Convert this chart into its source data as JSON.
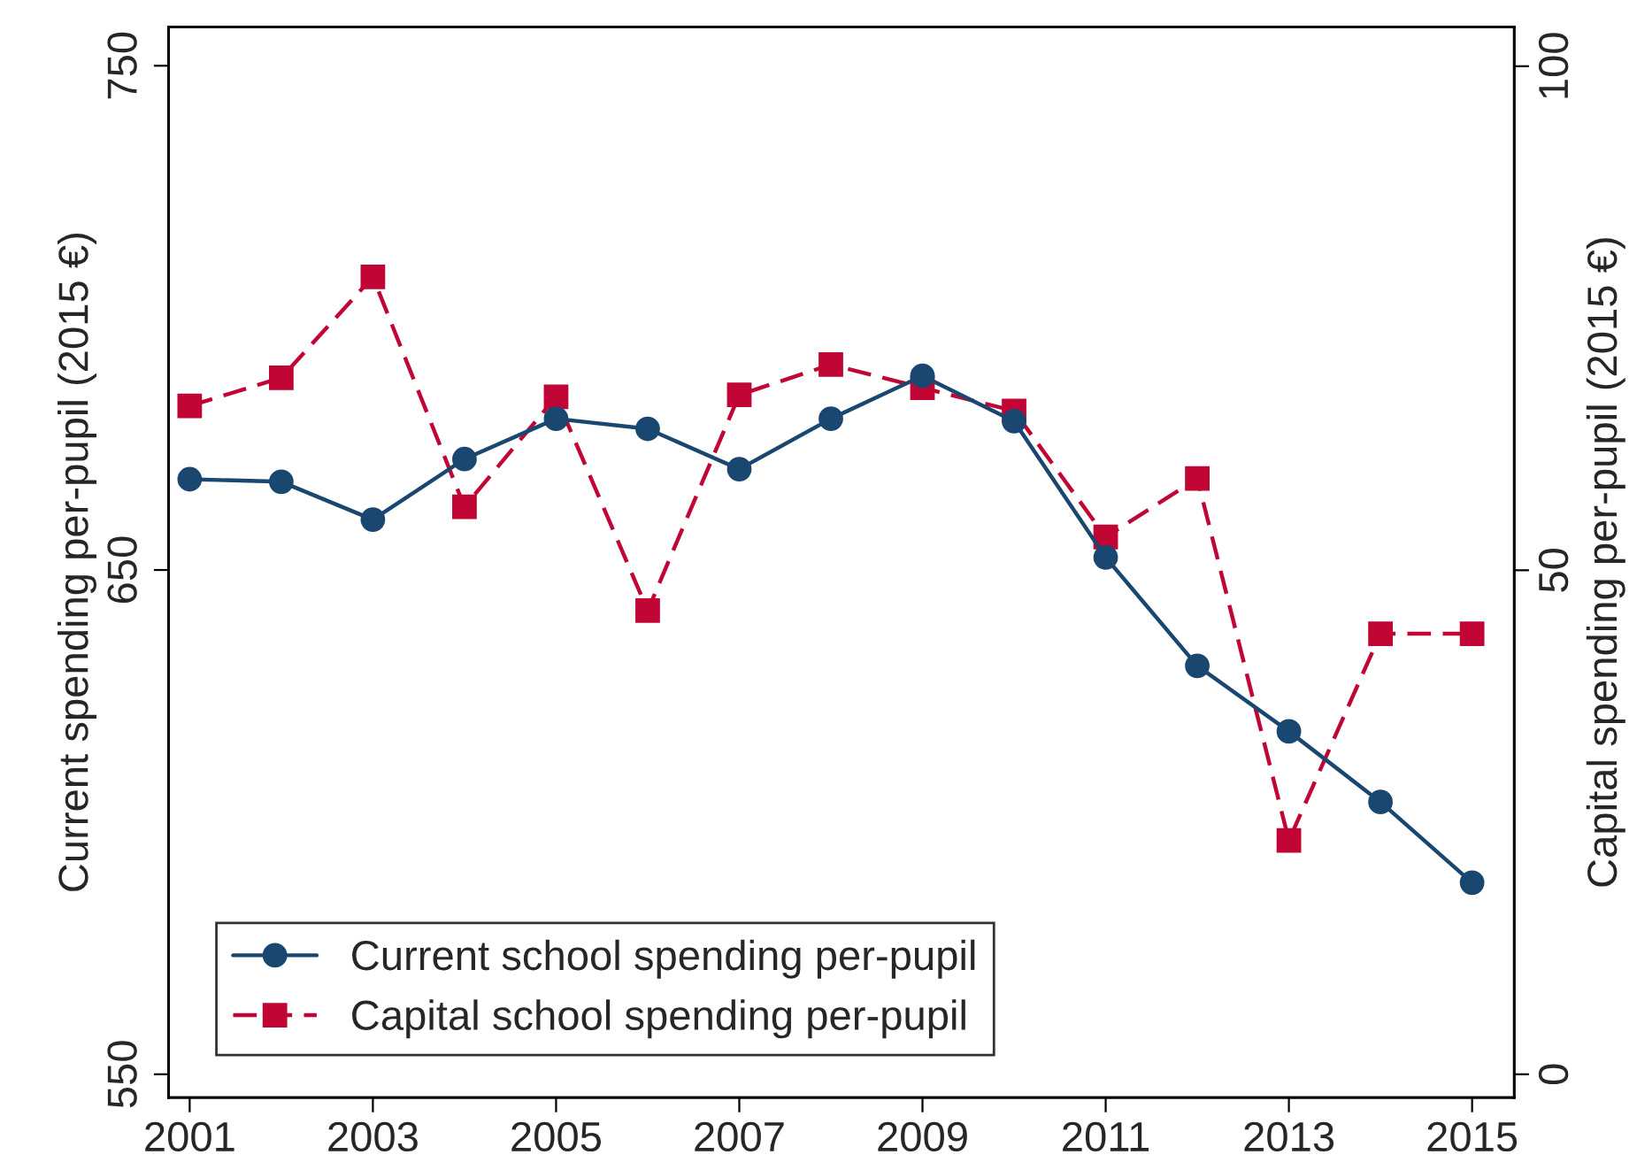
{
  "chart_data": {
    "type": "line",
    "xlabel": null,
    "ylabel": "Current spending per-pupil (2015 €)",
    "y2label": "Capital spending per-pupil (2015 €)",
    "x": [
      2001,
      2002,
      2003,
      2004,
      2005,
      2006,
      2007,
      2008,
      2009,
      2010,
      2011,
      2012,
      2013,
      2014,
      2015
    ],
    "series": [
      {
        "name": "Current school spending per-pupil",
        "color": "#1a476f",
        "marker": "circle",
        "line_style": "solid",
        "values": [
          668,
          667.5,
          660,
          672,
          680,
          678,
          670,
          680,
          688.5,
          679.5,
          652.5,
          631,
          618,
          604,
          588
        ]
      },
      {
        "name": "Capital school spending per-pupil",
        "color": "#c10534",
        "marker": "square",
        "line_style": "dashed",
        "axis": "y2",
        "values": [
          66.3,
          69.1,
          79.1,
          56.3,
          67.2,
          46,
          67.4,
          70.4,
          68.1,
          65.8,
          53.3,
          59.1,
          23.2,
          43.7,
          43.7
        ]
      }
    ],
    "xlim": [
      2000.77,
      2015.46
    ],
    "xticks": [
      2001,
      2003,
      2005,
      2007,
      2009,
      2011,
      2013,
      2015
    ],
    "ylim": [
      545.4,
      757.7
    ],
    "yticks": [
      550,
      650,
      750
    ],
    "y2lim": [
      -2.3,
      103.9
    ],
    "y2ticks": [
      0,
      50,
      100
    ],
    "grid": false,
    "legend": "bottom left"
  }
}
